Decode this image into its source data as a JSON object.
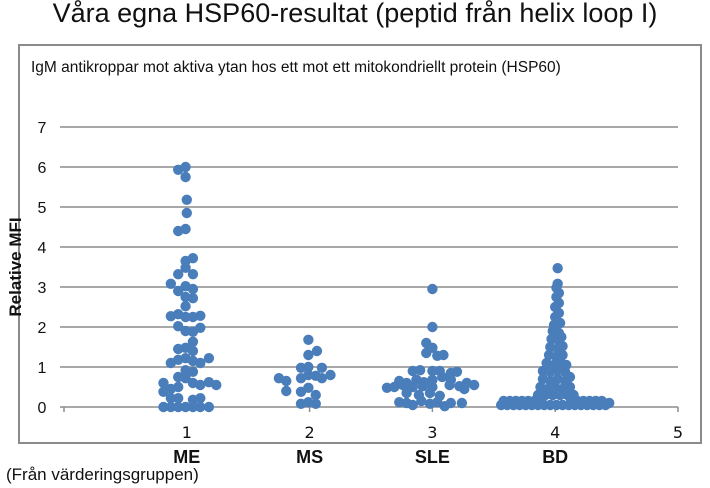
{
  "title": "Våra egna HSP60-resultat (peptid från helix loop I)",
  "source_note": "(Från värderingsgruppen)",
  "chart_data": {
    "type": "scatter",
    "title": "IgM antikroppar mot aktiva ytan hos ett mot ett mitokondriellt protein (HSP60)",
    "xlabel": "",
    "ylabel": "Relative MFI",
    "xlim": [
      0,
      5
    ],
    "ylim": [
      0,
      7
    ],
    "x_ticks": [
      "1",
      "2",
      "3",
      "4",
      "5"
    ],
    "y_ticks": [
      "0",
      "1",
      "2",
      "3",
      "4",
      "5",
      "6",
      "7"
    ],
    "grid": "horizontal",
    "color": "#4a7ebb",
    "categories": [
      {
        "x": 1,
        "label": "ME"
      },
      {
        "x": 2,
        "label": "MS"
      },
      {
        "x": 3,
        "label": "SLE"
      },
      {
        "x": 4,
        "label": "BD"
      }
    ],
    "series": [
      {
        "name": "ME",
        "points": [
          [
            0.93,
            5.93
          ],
          [
            0.99,
            6.0
          ],
          [
            0.99,
            5.75
          ],
          [
            1.0,
            5.18
          ],
          [
            1.0,
            4.85
          ],
          [
            0.93,
            4.4
          ],
          [
            0.99,
            4.45
          ],
          [
            0.99,
            3.65
          ],
          [
            1.05,
            3.72
          ],
          [
            0.93,
            3.32
          ],
          [
            1.05,
            3.32
          ],
          [
            0.99,
            3.48
          ],
          [
            0.87,
            3.08
          ],
          [
            0.93,
            2.9
          ],
          [
            0.99,
            3.02
          ],
          [
            1.05,
            2.95
          ],
          [
            0.99,
            2.75
          ],
          [
            1.05,
            2.72
          ],
          [
            0.99,
            2.52
          ],
          [
            0.87,
            2.27
          ],
          [
            0.93,
            2.32
          ],
          [
            0.99,
            2.25
          ],
          [
            1.05,
            2.25
          ],
          [
            1.11,
            2.28
          ],
          [
            0.93,
            2.02
          ],
          [
            0.99,
            1.9
          ],
          [
            1.05,
            1.88
          ],
          [
            1.11,
            1.98
          ],
          [
            1.05,
            1.63
          ],
          [
            0.93,
            1.45
          ],
          [
            0.99,
            1.48
          ],
          [
            1.05,
            1.4
          ],
          [
            0.87,
            1.1
          ],
          [
            0.93,
            1.18
          ],
          [
            0.99,
            1.22
          ],
          [
            1.05,
            1.15
          ],
          [
            1.11,
            1.1
          ],
          [
            1.18,
            1.22
          ],
          [
            0.93,
            0.75
          ],
          [
            0.99,
            0.92
          ],
          [
            1.05,
            0.88
          ],
          [
            0.81,
            0.6
          ],
          [
            0.99,
            0.72
          ],
          [
            1.05,
            0.6
          ],
          [
            1.11,
            0.55
          ],
          [
            1.18,
            0.62
          ],
          [
            1.24,
            0.55
          ],
          [
            0.81,
            0.38
          ],
          [
            0.87,
            0.45
          ],
          [
            0.93,
            0.5
          ],
          [
            0.87,
            0.22
          ],
          [
            0.93,
            0.22
          ],
          [
            1.05,
            0.18
          ],
          [
            1.11,
            0.22
          ],
          [
            0.81,
            0
          ],
          [
            0.87,
            0
          ],
          [
            0.93,
            0
          ],
          [
            0.99,
            0
          ],
          [
            1.05,
            0
          ],
          [
            1.11,
            0
          ],
          [
            1.18,
            0
          ]
        ]
      },
      {
        "name": "MS",
        "points": [
          [
            1.99,
            1.68
          ],
          [
            2.06,
            1.4
          ],
          [
            1.99,
            1.3
          ],
          [
            1.93,
            0.98
          ],
          [
            1.99,
            1.0
          ],
          [
            2.1,
            0.98
          ],
          [
            1.75,
            0.72
          ],
          [
            1.81,
            0.65
          ],
          [
            1.93,
            0.72
          ],
          [
            1.99,
            0.8
          ],
          [
            2.05,
            0.78
          ],
          [
            2.1,
            0.72
          ],
          [
            2.17,
            0.8
          ],
          [
            1.81,
            0.4
          ],
          [
            1.93,
            0.38
          ],
          [
            1.99,
            0.48
          ],
          [
            2.05,
            0.3
          ],
          [
            1.93,
            0.08
          ],
          [
            1.99,
            0.12
          ],
          [
            2.05,
            0.08
          ]
        ]
      },
      {
        "name": "SLE",
        "points": [
          [
            3.0,
            2.95
          ],
          [
            3.0,
            2.0
          ],
          [
            2.95,
            1.6
          ],
          [
            3.0,
            1.48
          ],
          [
            2.95,
            1.35
          ],
          [
            3.04,
            1.28
          ],
          [
            3.09,
            1.3
          ],
          [
            2.84,
            0.9
          ],
          [
            2.9,
            0.92
          ],
          [
            3.0,
            0.9
          ],
          [
            3.06,
            0.9
          ],
          [
            3.15,
            0.85
          ],
          [
            3.2,
            0.88
          ],
          [
            2.63,
            0.48
          ],
          [
            2.73,
            0.65
          ],
          [
            2.79,
            0.6
          ],
          [
            2.87,
            0.68
          ],
          [
            2.93,
            0.62
          ],
          [
            3.0,
            0.68
          ],
          [
            3.08,
            0.75
          ],
          [
            3.15,
            0.68
          ],
          [
            3.22,
            0.52
          ],
          [
            3.28,
            0.6
          ],
          [
            3.34,
            0.55
          ],
          [
            2.69,
            0.5
          ],
          [
            2.76,
            0.55
          ],
          [
            2.84,
            0.5
          ],
          [
            2.92,
            0.52
          ],
          [
            3.0,
            0.5
          ],
          [
            3.14,
            0.55
          ],
          [
            3.26,
            0.45
          ],
          [
            2.79,
            0.35
          ],
          [
            2.89,
            0.3
          ],
          [
            2.98,
            0.35
          ],
          [
            3.06,
            0.28
          ],
          [
            2.73,
            0.12
          ],
          [
            2.79,
            0.1
          ],
          [
            2.84,
            0.05
          ],
          [
            2.91,
            0.15
          ],
          [
            2.98,
            0.08
          ],
          [
            3.04,
            0.12
          ],
          [
            3.1,
            0.02
          ],
          [
            3.15,
            0.1
          ],
          [
            3.24,
            0.1
          ]
        ]
      },
      {
        "name": "BD",
        "points": [
          [
            3.56,
            0.05
          ],
          [
            3.61,
            0.05
          ],
          [
            3.66,
            0.05
          ],
          [
            3.71,
            0.05
          ],
          [
            3.76,
            0.05
          ],
          [
            3.81,
            0.05
          ],
          [
            3.86,
            0.05
          ],
          [
            3.91,
            0.05
          ],
          [
            3.96,
            0.05
          ],
          [
            4.01,
            0.05
          ],
          [
            4.06,
            0.05
          ],
          [
            4.11,
            0.05
          ],
          [
            4.16,
            0.05
          ],
          [
            4.21,
            0.05
          ],
          [
            4.26,
            0.05
          ],
          [
            4.31,
            0.05
          ],
          [
            4.36,
            0.05
          ],
          [
            4.41,
            0.05
          ],
          [
            4.44,
            0.1
          ],
          [
            3.58,
            0.15
          ],
          [
            3.63,
            0.15
          ],
          [
            3.68,
            0.15
          ],
          [
            3.73,
            0.15
          ],
          [
            3.78,
            0.15
          ],
          [
            3.83,
            0.15
          ],
          [
            3.88,
            0.15
          ],
          [
            4.13,
            0.15
          ],
          [
            4.18,
            0.15
          ],
          [
            4.23,
            0.15
          ],
          [
            4.28,
            0.15
          ],
          [
            4.33,
            0.15
          ],
          [
            4.38,
            0.15
          ],
          [
            3.86,
            0.3
          ],
          [
            3.92,
            0.3
          ],
          [
            3.98,
            0.3
          ],
          [
            4.04,
            0.3
          ],
          [
            4.1,
            0.3
          ],
          [
            4.15,
            0.3
          ],
          [
            3.88,
            0.5
          ],
          [
            3.94,
            0.45
          ],
          [
            4.0,
            0.5
          ],
          [
            4.06,
            0.45
          ],
          [
            4.12,
            0.5
          ],
          [
            3.9,
            0.7
          ],
          [
            3.96,
            0.65
          ],
          [
            4.02,
            0.7
          ],
          [
            4.08,
            0.65
          ],
          [
            4.12,
            0.75
          ],
          [
            3.9,
            0.9
          ],
          [
            3.96,
            0.88
          ],
          [
            4.02,
            0.92
          ],
          [
            4.08,
            0.88
          ],
          [
            3.93,
            1.1
          ],
          [
            3.99,
            1.05
          ],
          [
            4.05,
            1.1
          ],
          [
            4.09,
            1.05
          ],
          [
            3.95,
            1.3
          ],
          [
            4.01,
            1.25
          ],
          [
            4.06,
            1.3
          ],
          [
            3.96,
            1.5
          ],
          [
            4.02,
            1.45
          ],
          [
            4.06,
            1.52
          ],
          [
            3.97,
            1.7
          ],
          [
            4.03,
            1.65
          ],
          [
            4.05,
            1.75
          ],
          [
            3.98,
            1.9
          ],
          [
            4.03,
            1.85
          ],
          [
            3.99,
            2.05
          ],
          [
            4.04,
            2.1
          ],
          [
            4.0,
            2.25
          ],
          [
            4.03,
            2.35
          ],
          [
            4.0,
            2.5
          ],
          [
            4.03,
            2.6
          ],
          [
            4.01,
            2.75
          ],
          [
            4.03,
            2.85
          ],
          [
            4.01,
            2.98
          ],
          [
            4.02,
            3.08
          ],
          [
            4.02,
            3.47
          ]
        ]
      }
    ]
  }
}
